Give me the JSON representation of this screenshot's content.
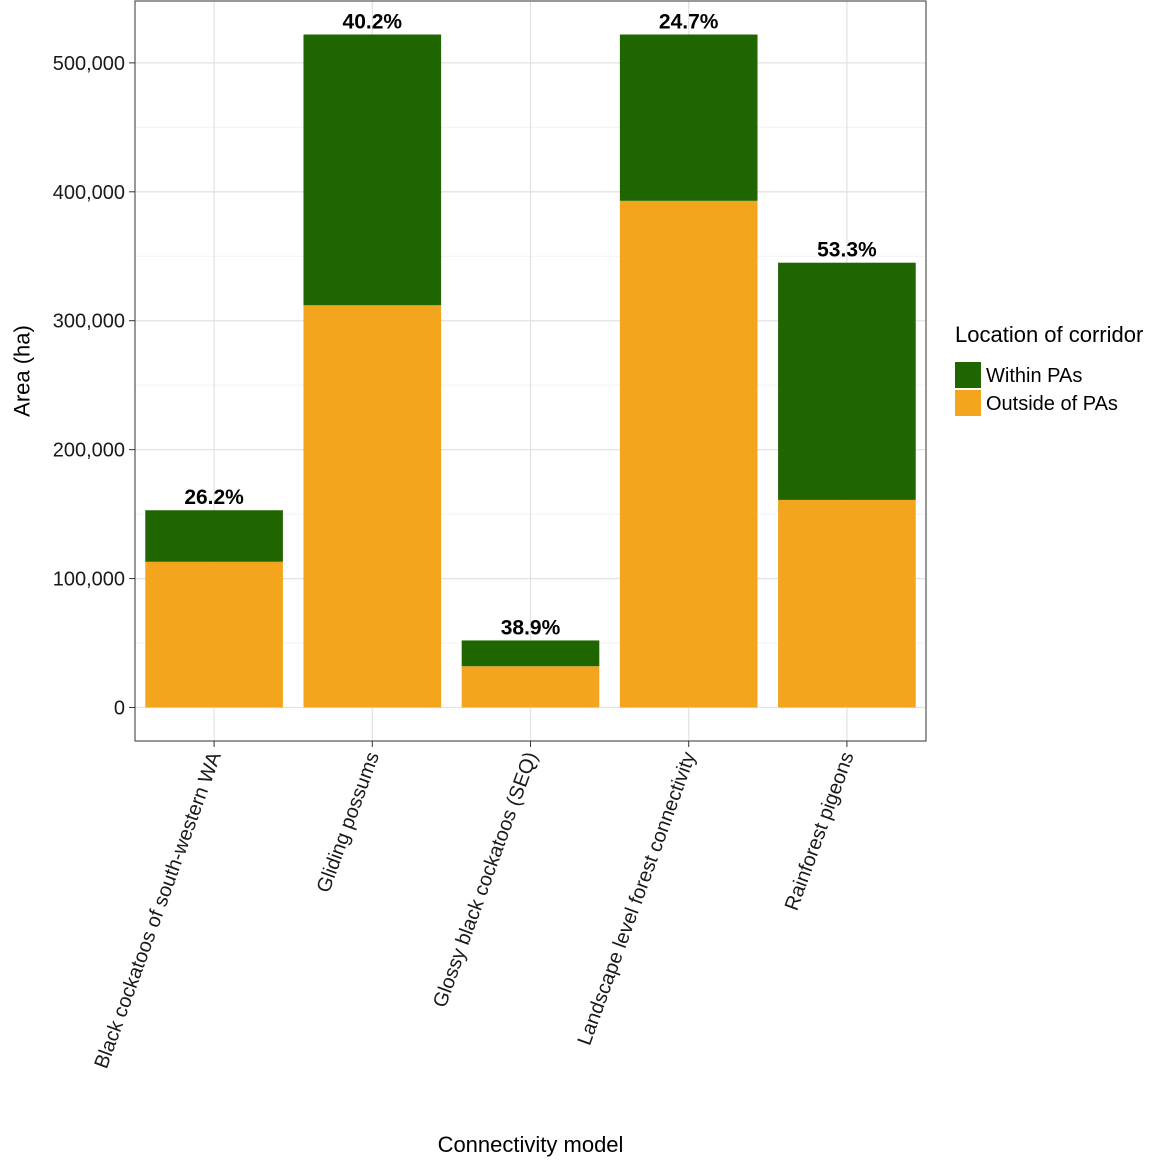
{
  "chart_data": {
    "type": "bar",
    "stacked": true,
    "xlabel": "Connectivity model",
    "ylabel": "Area (ha)",
    "ylim": [
      -26000,
      548000
    ],
    "yticks": [
      0,
      100000,
      200000,
      300000,
      400000,
      500000
    ],
    "ytick_labels": [
      "0",
      "100,000",
      "200,000",
      "300,000",
      "400,000",
      "500,000"
    ],
    "grid": true,
    "categories": [
      "Black cockatoos of south-western WA",
      "Gliding possums",
      "Glossy black cockatoos (SEQ)",
      "Landscape level forest connectivity",
      "Rainforest pigeons"
    ],
    "series": [
      {
        "name": "Outside of PAs",
        "color": "#F4A51E",
        "values": [
          113000,
          312000,
          32000,
          393000,
          161000
        ]
      },
      {
        "name": "Within PAs",
        "color": "#206600",
        "values": [
          40000,
          210000,
          20000,
          129000,
          184000
        ]
      }
    ],
    "bar_labels": [
      "26.2%",
      "40.2%",
      "38.9%",
      "24.7%",
      "53.3%"
    ],
    "legend": {
      "title": "Location of corridor",
      "position": "right",
      "items": [
        {
          "label": "Within PAs",
          "color": "#206600"
        },
        {
          "label": "Outside of PAs",
          "color": "#F4A51E"
        }
      ]
    }
  }
}
